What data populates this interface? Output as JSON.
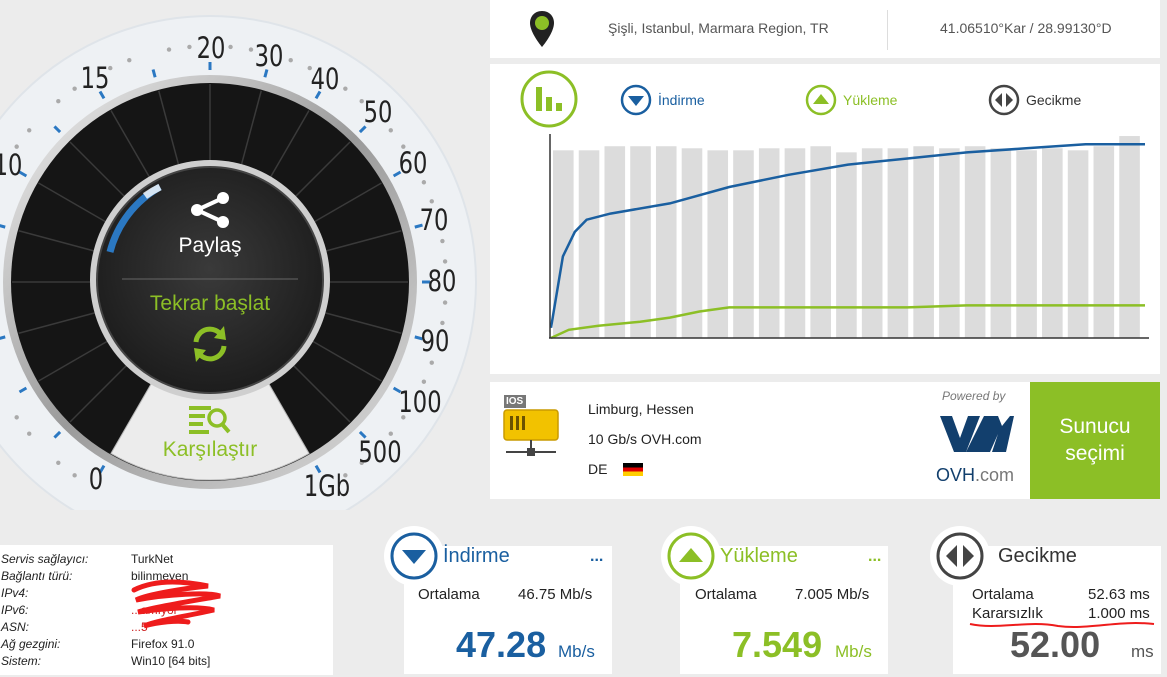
{
  "location": {
    "place": "Şişli, Istanbul, Marmara Region, TR",
    "coords": "41.06510°Kar / 28.99130°D"
  },
  "gauge": {
    "ticks": [
      "0",
      "10",
      "15",
      "20",
      "30",
      "40",
      "50",
      "60",
      "70",
      "80",
      "90",
      "100",
      "500",
      "1Gb"
    ],
    "share_label": "Paylaş",
    "restart_label": "Tekrar başlat",
    "compare_label": "Karşılaştır",
    "share_icon": "share-icon",
    "restart_icon": "refresh-icon",
    "compare_icon": "compare-icon"
  },
  "legend": {
    "download": "İndirme",
    "upload": "Yükleme",
    "latency": "Gecikme"
  },
  "colors": {
    "download": "#1a5fa0",
    "upload": "#8cbf26",
    "bar": "#dcdcdc"
  },
  "chart_data": {
    "type": "line",
    "bar_values": [
      0.92,
      0.92,
      0.94,
      0.94,
      0.94,
      0.93,
      0.92,
      0.92,
      0.93,
      0.93,
      0.94,
      0.91,
      0.93,
      0.93,
      0.94,
      0.93,
      0.94,
      0.93,
      0.92,
      0.93,
      0.92,
      0.94,
      0.99
    ],
    "series": [
      {
        "key": "download",
        "x": [
          0,
          0.02,
          0.04,
          0.06,
          0.1,
          0.2,
          0.3,
          0.4,
          0.5,
          0.6,
          0.7,
          0.8,
          0.9,
          1.0
        ],
        "y": [
          0.05,
          0.4,
          0.52,
          0.58,
          0.61,
          0.66,
          0.74,
          0.8,
          0.85,
          0.88,
          0.91,
          0.93,
          0.95,
          0.95
        ]
      },
      {
        "key": "upload",
        "x": [
          0,
          0.03,
          0.08,
          0.15,
          0.2,
          0.25,
          0.3,
          0.4,
          0.5,
          0.6,
          0.7,
          0.8,
          0.9,
          1.0
        ],
        "y": [
          0.0,
          0.04,
          0.06,
          0.08,
          0.1,
          0.13,
          0.15,
          0.15,
          0.15,
          0.15,
          0.16,
          0.16,
          0.16,
          0.16
        ]
      }
    ]
  },
  "server": {
    "city": "Limburg, Hessen",
    "provider": "10 Gb/s OVH.com",
    "country": "DE",
    "badge": "IOS",
    "powered_by": "Powered by",
    "brand": "OVH",
    "brand_suffix": ".com",
    "button_line1": "Sunucu",
    "button_line2": "seçimi"
  },
  "info": {
    "rows": [
      {
        "label": "Servis sağlayıcı:",
        "value": "TurkNet"
      },
      {
        "label": "Bağlantı türü:",
        "value": "bilinmeyen"
      },
      {
        "label": "IPv4:",
        "value": ""
      },
      {
        "label": "IPv6:",
        "value": "...amıyor"
      },
      {
        "label": "ASN:",
        "value": "...5"
      },
      {
        "label": "Ağ gezgini:",
        "value": "Firefox 91.0"
      },
      {
        "label": "Sistem:",
        "value": "Win10 [64 bits]"
      }
    ]
  },
  "download_card": {
    "title": "İndirme",
    "dots": "...",
    "avg_label": "Ortalama",
    "avg_value": "46.75 Mb/s",
    "big": "47.28",
    "unit": "Mb/s"
  },
  "upload_card": {
    "title": "Yükleme",
    "dots": "...",
    "avg_label": "Ortalama",
    "avg_value": "7.005 Mb/s",
    "big": "7.549",
    "unit": "Mb/s"
  },
  "latency_card": {
    "title": "Gecikme",
    "avg_label": "Ortalama",
    "avg_value": "52.63 ms",
    "jitter_label": "Kararsızlık",
    "jitter_value": "1.000 ms",
    "big": "52.00",
    "unit": "ms"
  }
}
